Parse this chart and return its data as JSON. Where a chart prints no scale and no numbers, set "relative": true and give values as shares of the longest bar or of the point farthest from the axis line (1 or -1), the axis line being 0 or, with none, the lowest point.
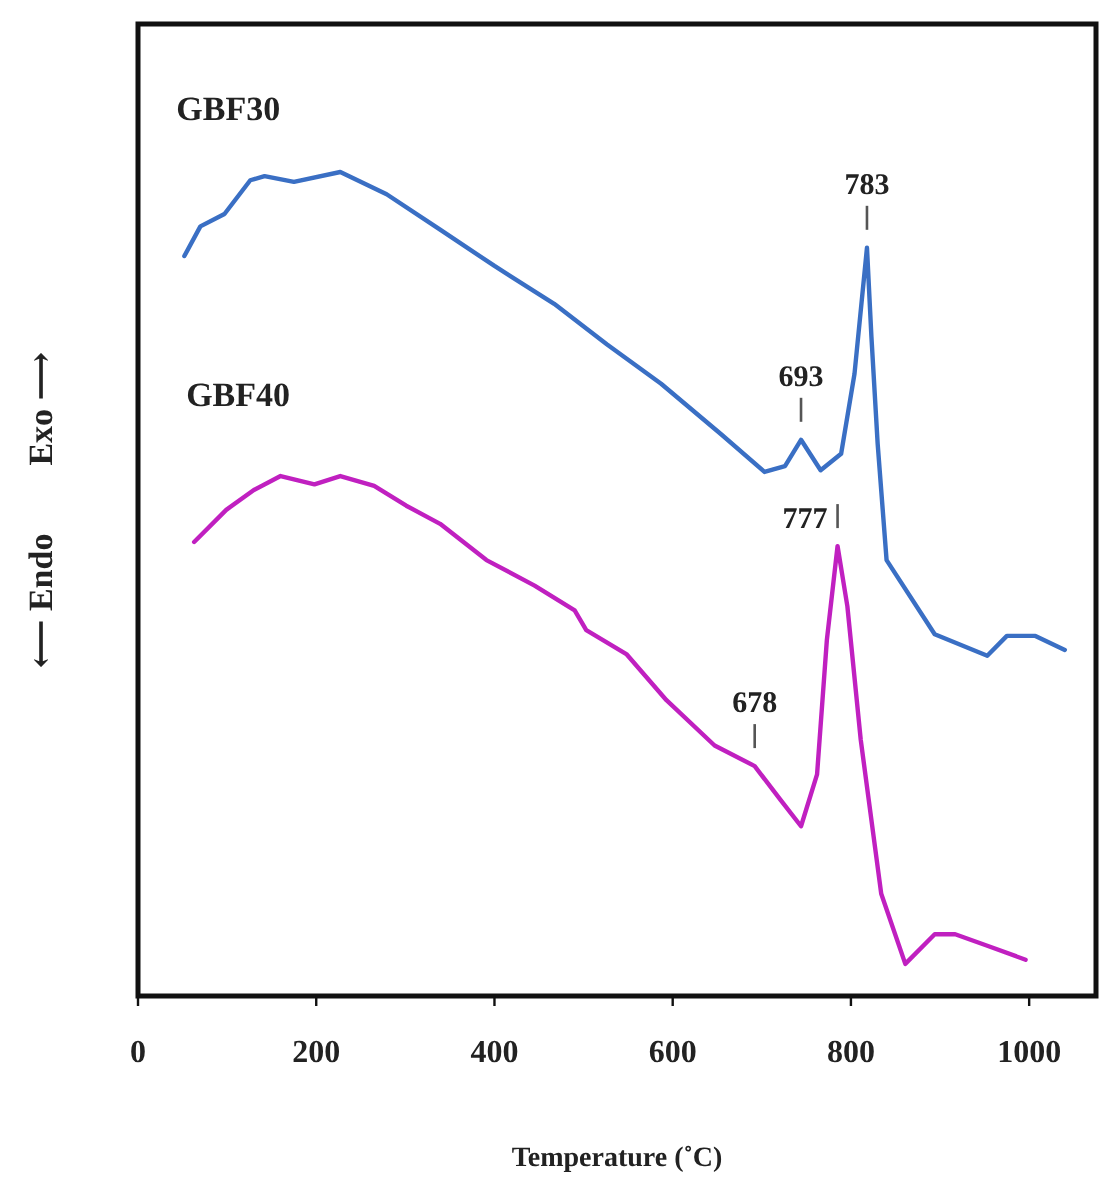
{
  "chart_data": {
    "type": "line",
    "relative": true,
    "xlabel": "Temperature (˚C)",
    "ylabel": "⟵ Endo        Exo ⟶",
    "xlim": [
      0,
      1075
    ],
    "xticks": [
      0,
      200,
      400,
      600,
      800,
      1000
    ],
    "grid": false,
    "marker": "none",
    "line_style": "solid",
    "series": [
      {
        "name": "GBF30",
        "color": "#3a6fc4",
        "x": [
          52,
          70,
          97,
          126,
          142,
          175,
          227,
          279,
          339,
          400,
          467,
          526,
          587,
          654,
          703,
          726,
          744,
          766,
          789,
          804,
          818,
          823,
          830,
          840,
          894,
          953,
          975,
          1007,
          1040
        ],
        "values": [
          0.898,
          0.934,
          0.949,
          0.99,
          0.995,
          0.988,
          1,
          0.973,
          0.93,
          0.886,
          0.84,
          0.791,
          0.743,
          0.682,
          0.636,
          0.643,
          0.675,
          0.638,
          0.658,
          0.755,
          0.908,
          0.8,
          0.67,
          0.529,
          0.439,
          0.413,
          0.437,
          0.437,
          0.42
        ]
      },
      {
        "name": "GBF40",
        "color": "#c020c0",
        "x": [
          63,
          99,
          130,
          160,
          198,
          227,
          265,
          301,
          339,
          391,
          445,
          490,
          503,
          548,
          593,
          647,
          692,
          721,
          744,
          762,
          773,
          785,
          796,
          811,
          834,
          861,
          894,
          917,
          953,
          996
        ],
        "values": [
          0.551,
          0.59,
          0.614,
          0.631,
          0.621,
          0.631,
          0.619,
          0.595,
          0.573,
          0.529,
          0.498,
          0.468,
          0.444,
          0.415,
          0.359,
          0.304,
          0.279,
          0.238,
          0.206,
          0.269,
          0.432,
          0.546,
          0.473,
          0.311,
          0.124,
          0.039,
          0.075,
          0.075,
          0.061,
          0.044
        ]
      }
    ],
    "annotations": [
      {
        "text": "783",
        "x": 818,
        "y": 0.908
      },
      {
        "text": "693",
        "x": 744,
        "y": 0.675
      },
      {
        "text": "777",
        "x": 785,
        "y": 0.546
      },
      {
        "text": "678",
        "x": 692,
        "y": 0.279
      }
    ]
  }
}
